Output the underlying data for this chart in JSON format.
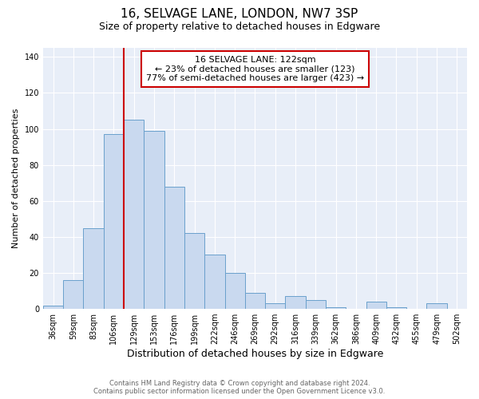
{
  "title": "16, SELVAGE LANE, LONDON, NW7 3SP",
  "subtitle": "Size of property relative to detached houses in Edgware",
  "xlabel": "Distribution of detached houses by size in Edgware",
  "ylabel": "Number of detached properties",
  "categories": [
    "36sqm",
    "59sqm",
    "83sqm",
    "106sqm",
    "129sqm",
    "153sqm",
    "176sqm",
    "199sqm",
    "222sqm",
    "246sqm",
    "269sqm",
    "292sqm",
    "316sqm",
    "339sqm",
    "362sqm",
    "386sqm",
    "409sqm",
    "432sqm",
    "455sqm",
    "479sqm",
    "502sqm"
  ],
  "values": [
    2,
    16,
    45,
    97,
    105,
    99,
    68,
    42,
    30,
    20,
    9,
    3,
    7,
    5,
    1,
    0,
    4,
    1,
    0,
    3,
    0
  ],
  "bar_color": "#c9d9ef",
  "bar_edge_color": "#6aa0cc",
  "vline_x_idx": 3,
  "vline_color": "#cc0000",
  "ylim": [
    0,
    145
  ],
  "yticks": [
    0,
    20,
    40,
    60,
    80,
    100,
    120,
    140
  ],
  "annotation_title": "16 SELVAGE LANE: 122sqm",
  "annotation_line1": "← 23% of detached houses are smaller (123)",
  "annotation_line2": "77% of semi-detached houses are larger (423) →",
  "annotation_box_facecolor": "#ffffff",
  "annotation_box_edgecolor": "#cc0000",
  "footer_line1": "Contains HM Land Registry data © Crown copyright and database right 2024.",
  "footer_line2": "Contains public sector information licensed under the Open Government Licence v3.0.",
  "fig_facecolor": "#ffffff",
  "plot_facecolor": "#e8eef8",
  "grid_color": "#ffffff",
  "title_fontsize": 11,
  "subtitle_fontsize": 9,
  "xlabel_fontsize": 9,
  "ylabel_fontsize": 8,
  "tick_fontsize": 7,
  "annot_fontsize": 8,
  "footer_fontsize": 6
}
